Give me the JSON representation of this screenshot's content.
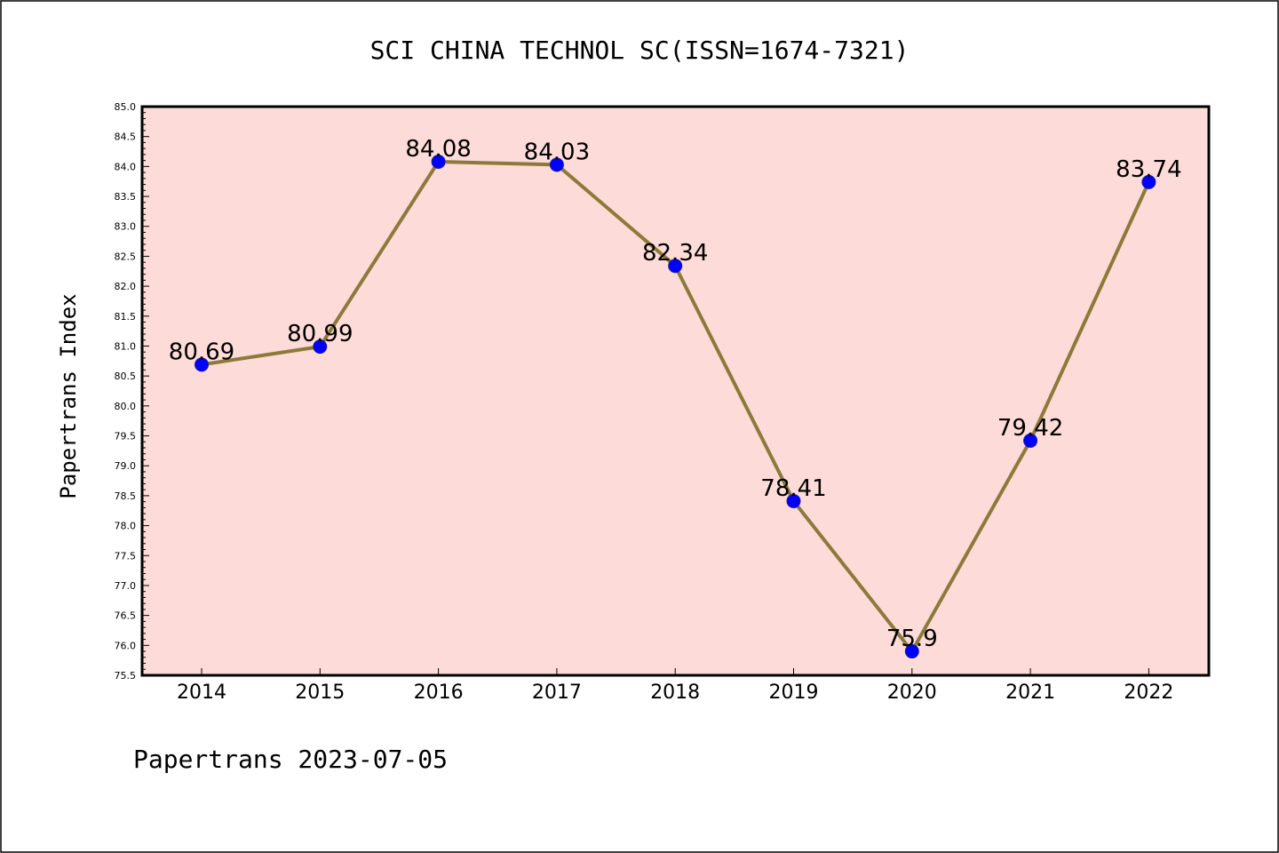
{
  "colors": {
    "plot_background": "#fddbd8",
    "line": "#8c7a3a",
    "marker": "#0000ff"
  },
  "footer": "Papertrans 2023-07-05",
  "chart_data": {
    "type": "line",
    "title": "SCI CHINA TECHNOL SC(ISSN=1674-7321)",
    "xlabel": "",
    "ylabel": "Papertrans Index",
    "categories": [
      "2014",
      "2015",
      "2016",
      "2017",
      "2018",
      "2019",
      "2020",
      "2021",
      "2022"
    ],
    "series": [
      {
        "values": [
          80.69,
          80.99,
          84.08,
          84.03,
          82.34,
          78.41,
          75.9,
          79.42,
          83.74
        ],
        "labels": [
          "80.69",
          "80.99",
          "84.08",
          "84.03",
          "82.34",
          "78.41",
          "75.9",
          "79.42",
          "83.74"
        ]
      }
    ],
    "ylim": [
      75.5,
      85.0
    ],
    "yticks": [
      "75.5",
      "76.0",
      "76.5",
      "77.0",
      "77.5",
      "78.0",
      "78.5",
      "79.0",
      "79.5",
      "80.0",
      "80.5",
      "81.0",
      "81.5",
      "82.0",
      "82.5",
      "83.0",
      "83.5",
      "84.0",
      "84.5",
      "85.0"
    ],
    "grid": false,
    "legend": "none",
    "markers": true
  }
}
